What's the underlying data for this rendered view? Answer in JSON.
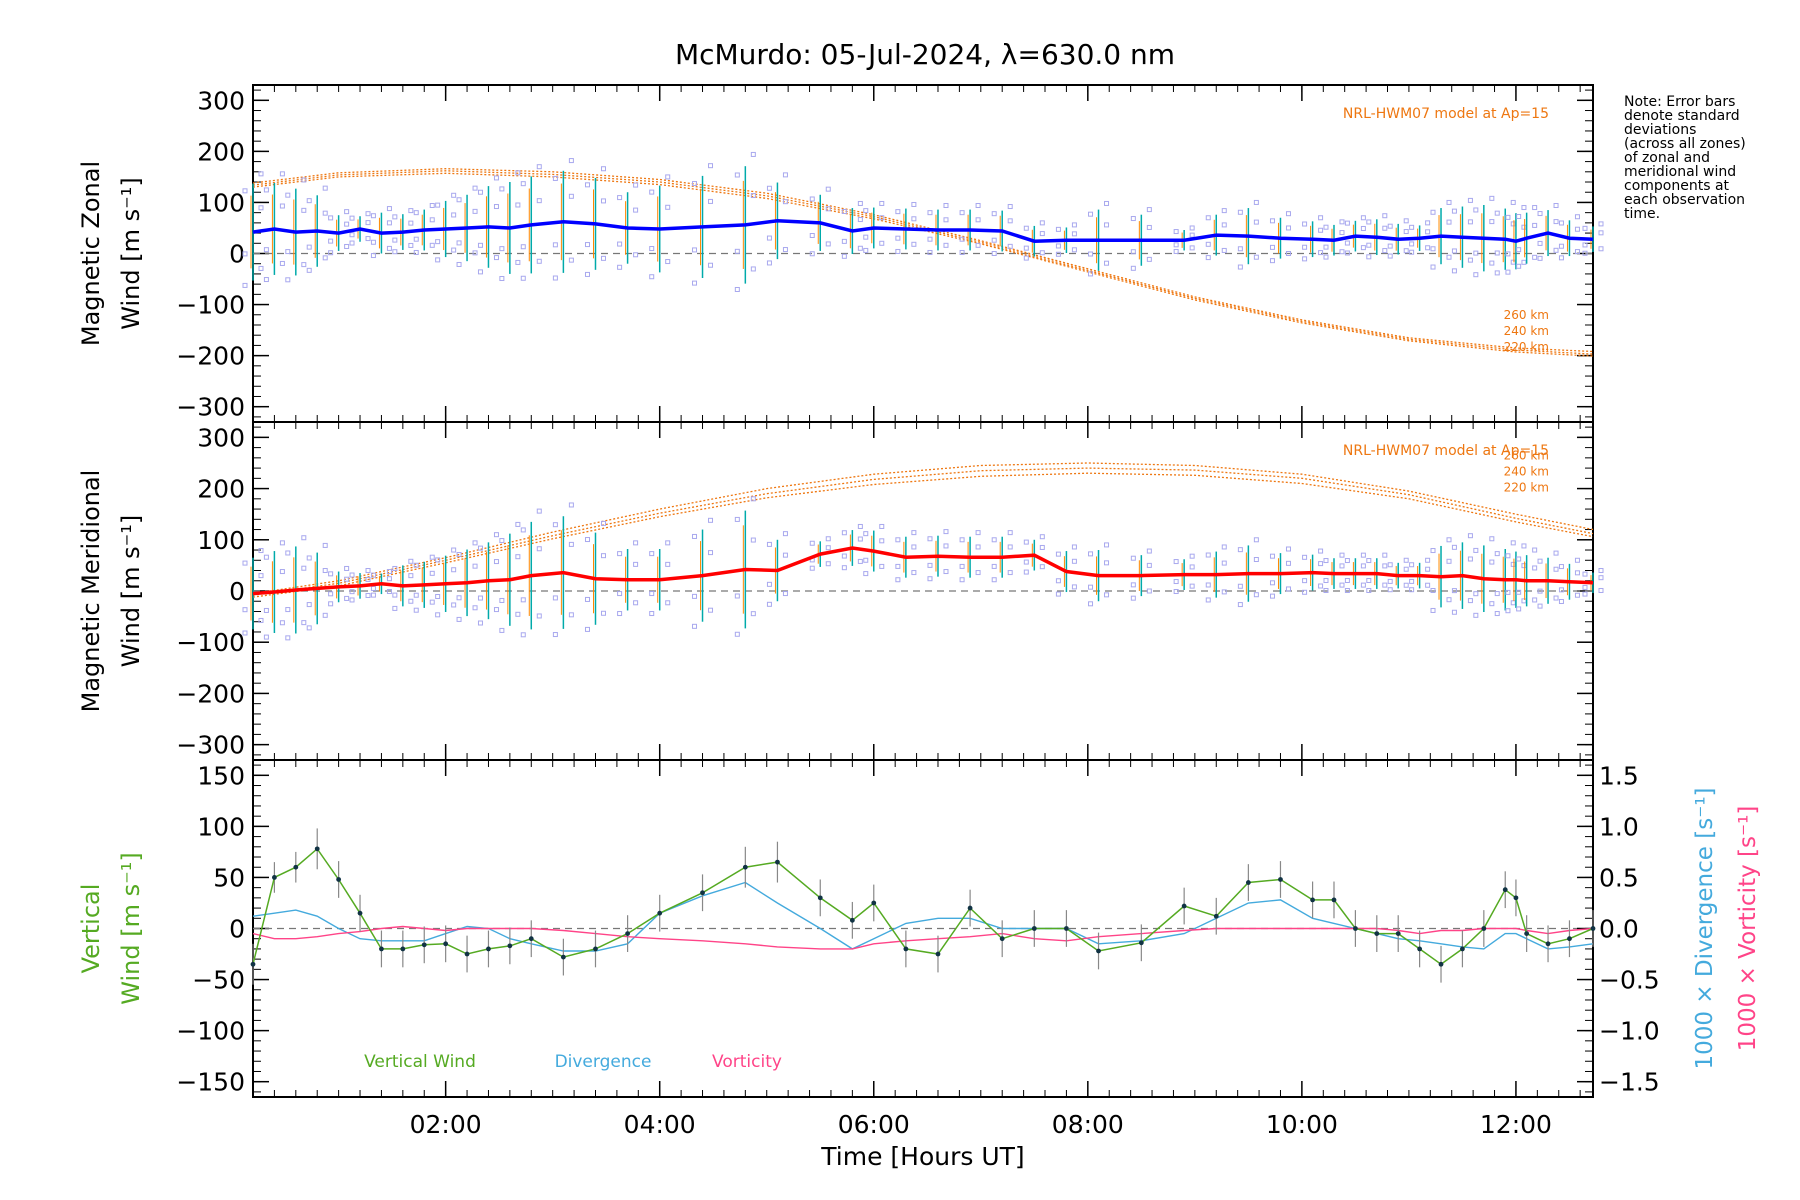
{
  "page": {
    "title": "McMurdo: 05-Jul-2024, λ=630.0 nm",
    "note_lines": [
      "Note: Error bars",
      "denote standard",
      "deviations",
      "(across all zones)",
      "of zonal and",
      "meridional wind",
      "components at",
      "each observation",
      "time."
    ]
  },
  "chart_data": [
    {
      "type": "line",
      "panel": "zonal",
      "ylabel_lines": [
        "Magnetic Zonal",
        "Wind [m s⁻¹]"
      ],
      "ylim": [
        -330,
        330
      ],
      "yticks": [
        -300,
        -200,
        -100,
        0,
        100,
        200,
        300
      ],
      "xlim": [
        0.2,
        12.72
      ],
      "model_label": "NRL-HWM07 model at Ap=15",
      "model_altitude_labels": [
        "260 km",
        "240 km",
        "220 km"
      ],
      "model_curves": [
        {
          "name": "260 km",
          "x": [
            0.2,
            1,
            2,
            3,
            4,
            5,
            6,
            7,
            8,
            9,
            10,
            11,
            12,
            12.72
          ],
          "y": [
            138,
            158,
            166,
            160,
            145,
            118,
            76,
            25,
            -30,
            -85,
            -130,
            -165,
            -185,
            -192
          ]
        },
        {
          "name": "240 km",
          "x": [
            0.2,
            1,
            2,
            3,
            4,
            5,
            6,
            7,
            8,
            9,
            10,
            11,
            12,
            12.72
          ],
          "y": [
            134,
            154,
            162,
            155,
            140,
            113,
            72,
            22,
            -33,
            -88,
            -133,
            -168,
            -189,
            -197
          ]
        },
        {
          "name": "220 km",
          "x": [
            0.2,
            1,
            2,
            3,
            4,
            5,
            6,
            7,
            8,
            9,
            10,
            11,
            12,
            12.72
          ],
          "y": [
            130,
            150,
            157,
            150,
            135,
            108,
            68,
            19,
            -36,
            -91,
            -136,
            -171,
            -193,
            -201
          ]
        }
      ],
      "series": [
        {
          "color": "#0000ff",
          "x": [
            0.2,
            0.4,
            0.6,
            0.8,
            1.0,
            1.2,
            1.4,
            1.6,
            1.8,
            2.0,
            2.2,
            2.4,
            2.6,
            2.8,
            3.1,
            3.4,
            3.7,
            4.0,
            4.4,
            4.8,
            5.1,
            5.5,
            5.8,
            6.0,
            6.3,
            6.6,
            6.9,
            7.2,
            7.5,
            7.8,
            8.1,
            8.5,
            8.9,
            9.2,
            9.5,
            9.8,
            10.1,
            10.3,
            10.5,
            10.7,
            10.9,
            11.1,
            11.3,
            11.5,
            11.7,
            11.9,
            12.0,
            12.1,
            12.3,
            12.5,
            12.72
          ],
          "y": [
            42,
            48,
            42,
            44,
            40,
            48,
            40,
            42,
            46,
            48,
            50,
            52,
            50,
            56,
            62,
            58,
            50,
            48,
            52,
            56,
            64,
            60,
            44,
            50,
            48,
            46,
            46,
            44,
            24,
            26,
            26,
            26,
            26,
            36,
            34,
            30,
            28,
            26,
            34,
            32,
            28,
            30,
            34,
            32,
            30,
            28,
            24,
            30,
            40,
            30,
            28
          ],
          "err": [
            95,
            90,
            85,
            70,
            35,
            25,
            40,
            35,
            40,
            55,
            65,
            80,
            90,
            95,
            100,
            90,
            70,
            85,
            100,
            115,
            75,
            55,
            45,
            40,
            40,
            40,
            40,
            40,
            30,
            25,
            60,
            50,
            20,
            40,
            55,
            40,
            35,
            30,
            30,
            35,
            30,
            25,
            55,
            60,
            65,
            60,
            55,
            50,
            45,
            35,
            25
          ]
        }
      ]
    },
    {
      "type": "line",
      "panel": "meridional",
      "ylabel_lines": [
        "Magnetic Meridional",
        "Wind [m s⁻¹]"
      ],
      "ylim": [
        -330,
        330
      ],
      "yticks": [
        -300,
        -200,
        -100,
        0,
        100,
        200,
        300
      ],
      "xlim": [
        0.2,
        12.72
      ],
      "model_label": "NRL-HWM07 model at Ap=15",
      "model_altitude_labels": [
        "260 km",
        "240 km",
        "220 km"
      ],
      "model_curves": [
        {
          "name": "260 km",
          "x": [
            0.2,
            1,
            2,
            3,
            4,
            5,
            6,
            7,
            8,
            9,
            10,
            11,
            12,
            12.72
          ],
          "y": [
            -5,
            20,
            65,
            115,
            160,
            200,
            228,
            245,
            250,
            245,
            228,
            195,
            150,
            120
          ]
        },
        {
          "name": "240 km",
          "x": [
            0.2,
            1,
            2,
            3,
            4,
            5,
            6,
            7,
            8,
            9,
            10,
            11,
            12,
            12.72
          ],
          "y": [
            -8,
            15,
            60,
            108,
            152,
            190,
            218,
            235,
            240,
            236,
            220,
            188,
            142,
            112
          ]
        },
        {
          "name": "220 km",
          "x": [
            0.2,
            1,
            2,
            3,
            4,
            5,
            6,
            7,
            8,
            9,
            10,
            11,
            12,
            12.72
          ],
          "y": [
            -12,
            10,
            55,
            102,
            145,
            182,
            208,
            224,
            230,
            226,
            210,
            180,
            135,
            106
          ]
        }
      ],
      "series": [
        {
          "color": "#ff0000",
          "x": [
            0.2,
            0.4,
            0.6,
            0.8,
            1.0,
            1.2,
            1.4,
            1.6,
            1.8,
            2.0,
            2.2,
            2.4,
            2.6,
            2.8,
            3.1,
            3.4,
            3.7,
            4.0,
            4.4,
            4.8,
            5.1,
            5.5,
            5.8,
            6.0,
            6.3,
            6.6,
            6.9,
            7.2,
            7.5,
            7.8,
            8.1,
            8.5,
            8.9,
            9.2,
            9.5,
            9.8,
            10.1,
            10.3,
            10.5,
            10.7,
            10.9,
            11.1,
            11.3,
            11.5,
            11.7,
            11.9,
            12.0,
            12.1,
            12.3,
            12.5,
            12.72
          ],
          "y": [
            -5,
            -2,
            2,
            5,
            8,
            10,
            14,
            10,
            12,
            14,
            16,
            20,
            22,
            30,
            36,
            24,
            22,
            22,
            30,
            42,
            40,
            72,
            84,
            78,
            66,
            68,
            66,
            66,
            70,
            38,
            30,
            30,
            32,
            32,
            34,
            34,
            36,
            34,
            34,
            34,
            30,
            30,
            28,
            30,
            24,
            22,
            22,
            20,
            20,
            18,
            16
          ],
          "err": [
            70,
            80,
            85,
            70,
            30,
            25,
            20,
            40,
            45,
            55,
            65,
            75,
            90,
            105,
            110,
            90,
            60,
            60,
            90,
            115,
            60,
            25,
            35,
            40,
            40,
            40,
            40,
            40,
            30,
            40,
            50,
            40,
            30,
            45,
            55,
            40,
            35,
            30,
            30,
            30,
            25,
            25,
            60,
            65,
            65,
            60,
            55,
            50,
            45,
            35,
            20
          ]
        }
      ]
    },
    {
      "type": "line",
      "panel": "vertical",
      "ylabel_left_lines": [
        "Vertical",
        "Wind [m s⁻¹]"
      ],
      "ylabel_right_1": "1000 × Divergence [s⁻¹]",
      "ylabel_right_2": "1000 × Vorticity [s⁻¹]",
      "xlabel": "Time [Hours UT]",
      "xticks": [
        2,
        4,
        6,
        8,
        10,
        12
      ],
      "xtick_labels": [
        "02:00",
        "04:00",
        "06:00",
        "08:00",
        "10:00",
        "12:00"
      ],
      "xlim": [
        0.2,
        12.72
      ],
      "ylim": [
        -165,
        165
      ],
      "yticks": [
        -150,
        -100,
        -50,
        0,
        50,
        100,
        150
      ],
      "ylim_right": [
        -1.65,
        1.65
      ],
      "yticks_right": [
        -1.5,
        -1.0,
        -0.5,
        0.0,
        0.5,
        1.0,
        1.5
      ],
      "yticks_right_labels": [
        "−1.5",
        "−1.0",
        "−0.5",
        "0.0",
        "0.5",
        "1.0",
        "1.5"
      ],
      "legend": [
        "Vertical Wind",
        "Divergence",
        "Vorticity"
      ],
      "colors": {
        "vertical": "#55aa22",
        "divergence": "#44aadd",
        "vorticity": "#ff4488"
      },
      "series": [
        {
          "name": "Vertical Wind",
          "x": [
            0.2,
            0.4,
            0.6,
            0.8,
            1.0,
            1.2,
            1.4,
            1.6,
            1.8,
            2.0,
            2.2,
            2.4,
            2.6,
            2.8,
            3.1,
            3.4,
            3.7,
            4.0,
            4.4,
            4.8,
            5.1,
            5.5,
            5.8,
            6.0,
            6.3,
            6.6,
            6.9,
            7.2,
            7.5,
            7.8,
            8.1,
            8.5,
            8.9,
            9.2,
            9.5,
            9.8,
            10.1,
            10.3,
            10.5,
            10.7,
            10.9,
            11.1,
            11.3,
            11.5,
            11.7,
            11.9,
            12.0,
            12.1,
            12.3,
            12.5,
            12.72
          ],
          "y": [
            -35,
            50,
            60,
            78,
            48,
            15,
            -20,
            -20,
            -16,
            -15,
            -25,
            -20,
            -17,
            -10,
            -28,
            -20,
            -5,
            15,
            35,
            60,
            65,
            30,
            8,
            25,
            -20,
            -25,
            20,
            -10,
            0,
            0,
            -22,
            -14,
            22,
            12,
            45,
            48,
            28,
            28,
            0,
            -5,
            -5,
            -20,
            -35,
            -20,
            0,
            38,
            30,
            -5,
            -15,
            -10,
            0
          ],
          "err": [
            20,
            15,
            15,
            20,
            18,
            18,
            18,
            18,
            18,
            18,
            18,
            18,
            18,
            18,
            18,
            18,
            18,
            18,
            18,
            20,
            20,
            18,
            18,
            18,
            18,
            18,
            18,
            18,
            18,
            18,
            18,
            18,
            18,
            18,
            18,
            18,
            18,
            18,
            18,
            18,
            18,
            18,
            18,
            18,
            18,
            18,
            18,
            18,
            18,
            18,
            18
          ]
        },
        {
          "name": "Divergence",
          "x": [
            0.2,
            0.4,
            0.6,
            0.8,
            1.0,
            1.2,
            1.4,
            1.6,
            1.8,
            2.0,
            2.2,
            2.4,
            2.6,
            2.8,
            3.1,
            3.4,
            3.7,
            4.0,
            4.4,
            4.8,
            5.1,
            5.5,
            5.8,
            6.0,
            6.3,
            6.6,
            6.9,
            7.2,
            7.5,
            7.8,
            8.1,
            8.5,
            8.9,
            9.2,
            9.5,
            9.8,
            10.1,
            10.3,
            10.5,
            10.7,
            10.9,
            11.1,
            11.3,
            11.5,
            11.7,
            11.9,
            12.0,
            12.1,
            12.3,
            12.5,
            12.72
          ],
          "y": [
            0.12,
            0.15,
            0.18,
            0.12,
            0.0,
            -0.1,
            -0.12,
            -0.12,
            -0.12,
            -0.05,
            0.02,
            0.0,
            -0.1,
            -0.15,
            -0.22,
            -0.22,
            -0.15,
            0.15,
            0.32,
            0.45,
            0.25,
            0.0,
            -0.2,
            -0.1,
            0.05,
            0.1,
            0.1,
            0.0,
            0.0,
            0.0,
            -0.15,
            -0.12,
            -0.05,
            0.1,
            0.25,
            0.28,
            0.1,
            0.05,
            0.0,
            -0.05,
            -0.1,
            -0.12,
            -0.15,
            -0.18,
            -0.2,
            -0.05,
            -0.05,
            -0.1,
            -0.2,
            -0.18,
            -0.15
          ]
        },
        {
          "name": "Vorticity",
          "x": [
            0.2,
            0.4,
            0.6,
            0.8,
            1.0,
            1.2,
            1.4,
            1.6,
            1.8,
            2.0,
            2.2,
            2.4,
            2.6,
            2.8,
            3.1,
            3.4,
            3.7,
            4.0,
            4.4,
            4.8,
            5.1,
            5.5,
            5.8,
            6.0,
            6.3,
            6.6,
            6.9,
            7.2,
            7.5,
            7.8,
            8.1,
            8.5,
            8.9,
            9.2,
            9.5,
            9.8,
            10.1,
            10.3,
            10.5,
            10.7,
            10.9,
            11.1,
            11.3,
            11.5,
            11.7,
            11.9,
            12.0,
            12.1,
            12.3,
            12.5,
            12.72
          ],
          "y": [
            -0.05,
            -0.1,
            -0.1,
            -0.08,
            -0.05,
            -0.03,
            0.0,
            0.02,
            0.0,
            -0.02,
            0.0,
            0.0,
            0.0,
            0.0,
            -0.02,
            -0.05,
            -0.08,
            -0.1,
            -0.12,
            -0.15,
            -0.18,
            -0.2,
            -0.2,
            -0.15,
            -0.12,
            -0.1,
            -0.08,
            -0.05,
            -0.1,
            -0.12,
            -0.08,
            -0.05,
            -0.02,
            0.0,
            0.0,
            0.0,
            0.0,
            0.0,
            0.0,
            0.0,
            -0.02,
            -0.05,
            -0.02,
            -0.02,
            0.0,
            0.0,
            0.0,
            -0.02,
            -0.05,
            -0.02,
            0.0
          ]
        }
      ]
    }
  ]
}
